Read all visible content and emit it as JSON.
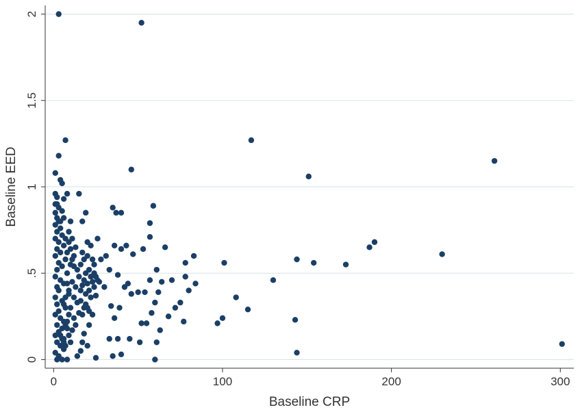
{
  "chart_data": {
    "type": "scatter",
    "xlabel": "Baseline CRP",
    "ylabel": "Baseline EED",
    "xlim": [
      -5,
      308
    ],
    "ylim": [
      -0.05,
      2.05
    ],
    "xticks": [
      0,
      100,
      200,
      300
    ],
    "xtick_labels": [
      "0",
      "100",
      "200",
      "300"
    ],
    "yticks": [
      0,
      0.5,
      1,
      1.5,
      2
    ],
    "ytick_labels": [
      "0",
      ".5",
      "1",
      "1.5",
      "2"
    ],
    "grid": "horizontal",
    "legend": "none",
    "colors": {
      "point": "#1b3f66",
      "grid": "#dce6ea",
      "axis": "#333333"
    },
    "points": [
      [
        3,
        2.0
      ],
      [
        52,
        1.95
      ],
      [
        117,
        1.27
      ],
      [
        7,
        1.27
      ],
      [
        261,
        1.15
      ],
      [
        46,
        1.1
      ],
      [
        151,
        1.06
      ],
      [
        3,
        1.18
      ],
      [
        1,
        1.08
      ],
      [
        4,
        1.04
      ],
      [
        5,
        1.02
      ],
      [
        1,
        0.96
      ],
      [
        2,
        0.94
      ],
      [
        6,
        0.93
      ],
      [
        8,
        0.96
      ],
      [
        15,
        0.96
      ],
      [
        35,
        0.88
      ],
      [
        37,
        0.85
      ],
      [
        40,
        0.85
      ],
      [
        59,
        0.89
      ],
      [
        57,
        0.79
      ],
      [
        17,
        0.8
      ],
      [
        19,
        0.85
      ],
      [
        10,
        0.8
      ],
      [
        83,
        0.6
      ],
      [
        78,
        0.56
      ],
      [
        66,
        0.65
      ],
      [
        57,
        0.71
      ],
      [
        61,
        0.52
      ],
      [
        53,
        0.64
      ],
      [
        43,
        0.66
      ],
      [
        40,
        0.64
      ],
      [
        36,
        0.66
      ],
      [
        47,
        0.61
      ],
      [
        31,
        0.6
      ],
      [
        28,
        0.58
      ],
      [
        26,
        0.7
      ],
      [
        22,
        0.66
      ],
      [
        20,
        0.68
      ],
      [
        24,
        0.55
      ],
      [
        33,
        0.52
      ],
      [
        38,
        0.49
      ],
      [
        44,
        0.44
      ],
      [
        50,
        0.39
      ],
      [
        54,
        0.39
      ],
      [
        57,
        0.46
      ],
      [
        62,
        0.39
      ],
      [
        64,
        0.45
      ],
      [
        70,
        0.46
      ],
      [
        75,
        0.33
      ],
      [
        78,
        0.48
      ],
      [
        80,
        0.4
      ],
      [
        84,
        0.44
      ],
      [
        72,
        0.3
      ],
      [
        68,
        0.25
      ],
      [
        60,
        0.33
      ],
      [
        58,
        0.27
      ],
      [
        55,
        0.21
      ],
      [
        52,
        0.21
      ],
      [
        46,
        0.38
      ],
      [
        42,
        0.42
      ],
      [
        39,
        0.3
      ],
      [
        36,
        0.24
      ],
      [
        34,
        0.31
      ],
      [
        30,
        0.42
      ],
      [
        27,
        0.45
      ],
      [
        25,
        0.37
      ],
      [
        23,
        0.26
      ],
      [
        21,
        0.2
      ],
      [
        19,
        0.32
      ],
      [
        18,
        0.15
      ],
      [
        17,
        0.1
      ],
      [
        16,
        0.05
      ],
      [
        14,
        0.02
      ],
      [
        20,
        0.08
      ],
      [
        25,
        0.01
      ],
      [
        33,
        0.12
      ],
      [
        35,
        0.02
      ],
      [
        38,
        0.12
      ],
      [
        40,
        0.03
      ],
      [
        45,
        0.12
      ],
      [
        51,
        0.1
      ],
      [
        60,
        0.0
      ],
      [
        61,
        0.1
      ],
      [
        63,
        0.17
      ],
      [
        77,
        0.22
      ],
      [
        97,
        0.21
      ],
      [
        100,
        0.24
      ],
      [
        101,
        0.56
      ],
      [
        108,
        0.36
      ],
      [
        115,
        0.29
      ],
      [
        130,
        0.46
      ],
      [
        144,
        0.58
      ],
      [
        143,
        0.23
      ],
      [
        144,
        0.04
      ],
      [
        154,
        0.56
      ],
      [
        173,
        0.55
      ],
      [
        187,
        0.65
      ],
      [
        190,
        0.68
      ],
      [
        230,
        0.61
      ],
      [
        301,
        0.09
      ],
      [
        1,
        0.85
      ],
      [
        2,
        0.82
      ],
      [
        3,
        0.8
      ],
      [
        1,
        0.78
      ],
      [
        4,
        0.76
      ],
      [
        2,
        0.74
      ],
      [
        5,
        0.72
      ],
      [
        1,
        0.7
      ],
      [
        3,
        0.68
      ],
      [
        6,
        0.66
      ],
      [
        2,
        0.64
      ],
      [
        4,
        0.62
      ],
      [
        1,
        0.6
      ],
      [
        7,
        0.58
      ],
      [
        3,
        0.56
      ],
      [
        5,
        0.54
      ],
      [
        2,
        0.52
      ],
      [
        8,
        0.5
      ],
      [
        1,
        0.48
      ],
      [
        4,
        0.46
      ],
      [
        6,
        0.44
      ],
      [
        2,
        0.42
      ],
      [
        3,
        0.4
      ],
      [
        9,
        0.38
      ],
      [
        1,
        0.36
      ],
      [
        5,
        0.34
      ],
      [
        2,
        0.32
      ],
      [
        7,
        0.3
      ],
      [
        3,
        0.28
      ],
      [
        1,
        0.26
      ],
      [
        4,
        0.24
      ],
      [
        6,
        0.22
      ],
      [
        2,
        0.2
      ],
      [
        8,
        0.18
      ],
      [
        3,
        0.16
      ],
      [
        1,
        0.14
      ],
      [
        5,
        0.12
      ],
      [
        2,
        0.1
      ],
      [
        4,
        0.08
      ],
      [
        6,
        0.06
      ],
      [
        1,
        0.04
      ],
      [
        3,
        0.02
      ],
      [
        2,
        0.0
      ],
      [
        5,
        0.0
      ],
      [
        8,
        0.0
      ],
      [
        1,
        0.9
      ],
      [
        3,
        0.88
      ],
      [
        5,
        0.86
      ],
      [
        2,
        0.9
      ],
      [
        6,
        0.82
      ],
      [
        4,
        0.8
      ],
      [
        9,
        0.74
      ],
      [
        11,
        0.7
      ],
      [
        13,
        0.65
      ],
      [
        12,
        0.6
      ],
      [
        10,
        0.55
      ],
      [
        14,
        0.52
      ],
      [
        15,
        0.48
      ],
      [
        11,
        0.45
      ],
      [
        13,
        0.42
      ],
      [
        16,
        0.4
      ],
      [
        12,
        0.36
      ],
      [
        14,
        0.33
      ],
      [
        10,
        0.3
      ],
      [
        15,
        0.27
      ],
      [
        12,
        0.24
      ],
      [
        13,
        0.2
      ],
      [
        11,
        0.17
      ],
      [
        9,
        0.14
      ],
      [
        10,
        0.1
      ],
      [
        7,
        0.08
      ],
      [
        6,
        0.12
      ],
      [
        8,
        0.62
      ],
      [
        9,
        0.68
      ],
      [
        7,
        0.7
      ],
      [
        10,
        0.64
      ],
      [
        11,
        0.58
      ],
      [
        12,
        0.54
      ],
      [
        8,
        0.44
      ],
      [
        9,
        0.4
      ],
      [
        7,
        0.36
      ],
      [
        6,
        0.32
      ],
      [
        9,
        0.26
      ],
      [
        8,
        0.22
      ],
      [
        7,
        0.2
      ],
      [
        5,
        0.18
      ],
      [
        4,
        0.14
      ],
      [
        6,
        0.1
      ],
      [
        17,
        0.62
      ],
      [
        18,
        0.58
      ],
      [
        16,
        0.55
      ],
      [
        19,
        0.5
      ],
      [
        18,
        0.46
      ],
      [
        17,
        0.43
      ],
      [
        19,
        0.38
      ],
      [
        16,
        0.34
      ],
      [
        18,
        0.3
      ],
      [
        17,
        0.26
      ],
      [
        20,
        0.6
      ],
      [
        21,
        0.52
      ],
      [
        22,
        0.48
      ],
      [
        20,
        0.44
      ],
      [
        21,
        0.4
      ],
      [
        22,
        0.36
      ],
      [
        20,
        0.3
      ],
      [
        21,
        0.28
      ],
      [
        23,
        0.58
      ],
      [
        24,
        0.5
      ],
      [
        23,
        0.45
      ],
      [
        24,
        0.42
      ],
      [
        25,
        0.48
      ],
      [
        26,
        0.46
      ]
    ]
  }
}
